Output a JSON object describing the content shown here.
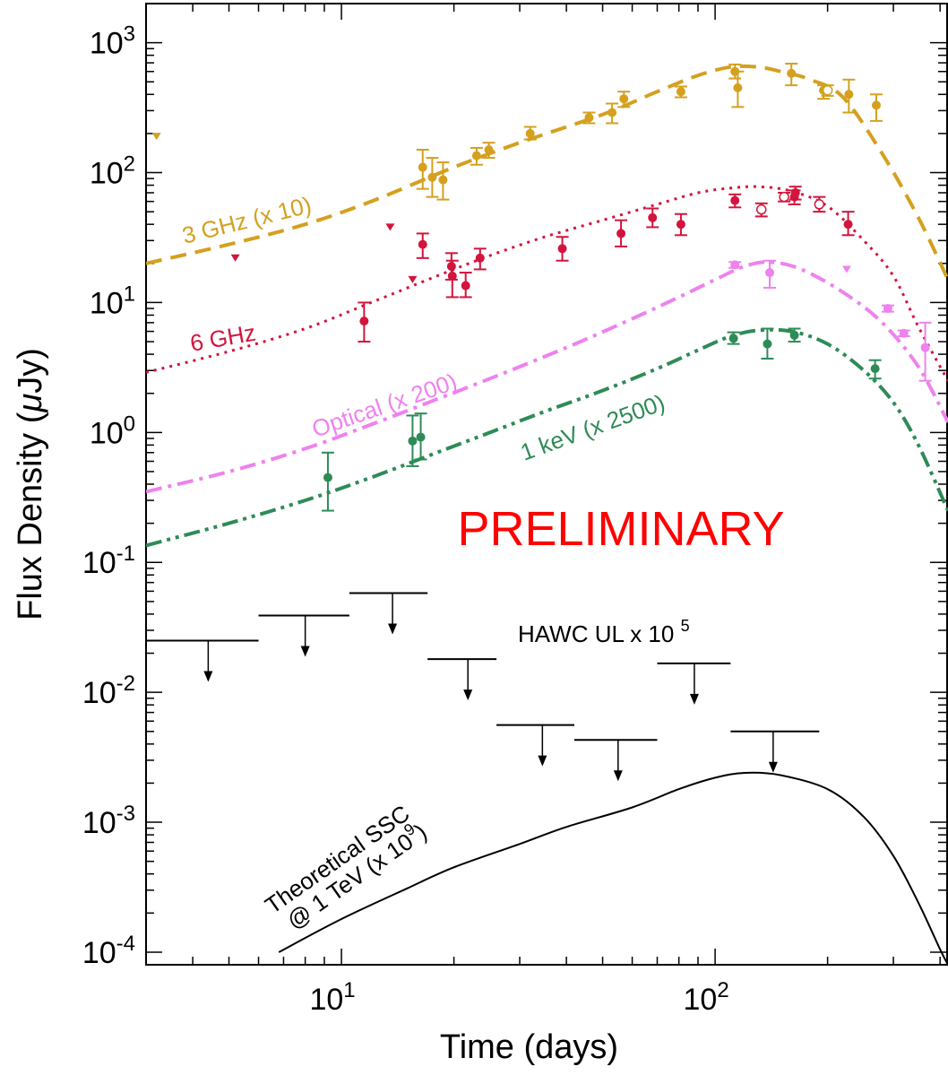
{
  "chart_data": {
    "type": "scatter",
    "xlabel_main": "Time (days)",
    "ylabel_parts": [
      "Flux Density (",
      "μ",
      "Jy)"
    ],
    "x_scale": "log",
    "y_scale": "log",
    "xlim": [
      3,
      420
    ],
    "ylim": [
      8e-05,
      2000
    ],
    "x_ticks": [
      {
        "base": "10",
        "exp": "1",
        "value": 10
      },
      {
        "base": "10",
        "exp": "2",
        "value": 100
      }
    ],
    "y_ticks": [
      {
        "base": "10",
        "exp": "3",
        "value": 1000
      },
      {
        "base": "10",
        "exp": "2",
        "value": 100
      },
      {
        "base": "10",
        "exp": "1",
        "value": 10
      },
      {
        "base": "10",
        "exp": "0",
        "value": 1
      },
      {
        "base": "10",
        "exp": "-1",
        "value": 0.1
      },
      {
        "base": "10",
        "exp": "-2",
        "value": 0.01
      },
      {
        "base": "10",
        "exp": "-3",
        "value": 0.001
      },
      {
        "base": "10",
        "exp": "-4",
        "value": 0.0001
      }
    ],
    "watermark": "PRELIMINARY",
    "colors": {
      "ghz3": "#d4a01e",
      "ghz6": "#d3143c",
      "optical": "#ee82ee",
      "xray": "#2e8b57",
      "hawc": "#000000",
      "ssc": "#000000",
      "watermark": "#ff0000"
    },
    "series": [
      {
        "id": "ghz3",
        "name": "3 GHz (x 10)",
        "points": [
          {
            "x": 16.5,
            "y": 110,
            "err": [
              75,
              150
            ]
          },
          {
            "x": 17.5,
            "y": 92,
            "err": [
              65,
              130
            ]
          },
          {
            "x": 18.7,
            "y": 88,
            "err": [
              62,
              120
            ]
          },
          {
            "x": 23,
            "y": 135,
            "err": [
              115,
              155
            ]
          },
          {
            "x": 24.8,
            "y": 150,
            "err": [
              130,
              170
            ]
          },
          {
            "x": 32,
            "y": 200,
            "err": [
              180,
              225
            ]
          },
          {
            "x": 46,
            "y": 265,
            "err": [
              240,
              290
            ]
          },
          {
            "x": 53,
            "y": 290,
            "err": [
              240,
              340
            ]
          },
          {
            "x": 57,
            "y": 370,
            "err": [
              320,
              420
            ]
          },
          {
            "x": 81,
            "y": 420,
            "err": [
              380,
              460
            ]
          },
          {
            "x": 113,
            "y": 600,
            "err": [
              530,
              680
            ]
          },
          {
            "x": 115,
            "y": 450,
            "err": [
              320,
              600
            ]
          },
          {
            "x": 160,
            "y": 580,
            "err": [
              470,
              690
            ]
          },
          {
            "x": 195,
            "y": 430,
            "err": [
              370,
              470
            ]
          },
          {
            "x": 228,
            "y": 400,
            "err": [
              290,
              520
            ]
          },
          {
            "x": 270,
            "y": 330,
            "err": [
              250,
              400
            ]
          }
        ],
        "open_points": [
          {
            "x": 200,
            "y": 430,
            "err": [
              390,
              470
            ]
          }
        ],
        "upper_limits": [
          {
            "x": 3.2,
            "y": 190
          }
        ],
        "model": [
          [
            3,
            20
          ],
          [
            5,
            28
          ],
          [
            8,
            40
          ],
          [
            12,
            60
          ],
          [
            20,
            110
          ],
          [
            30,
            170
          ],
          [
            50,
            280
          ],
          [
            70,
            420
          ],
          [
            90,
            560
          ],
          [
            110,
            650
          ],
          [
            130,
            650
          ],
          [
            150,
            600
          ],
          [
            180,
            520
          ],
          [
            220,
            380
          ],
          [
            280,
            140
          ],
          [
            350,
            45
          ],
          [
            420,
            15
          ]
        ]
      },
      {
        "id": "ghz6",
        "name": "6 GHz",
        "points": [
          {
            "x": 11.5,
            "y": 7.2,
            "err": [
              5,
              10
            ]
          },
          {
            "x": 16.5,
            "y": 28,
            "err": [
              22,
              34
            ]
          },
          {
            "x": 19.7,
            "y": 19,
            "err": [
              15,
              24
            ]
          },
          {
            "x": 19.8,
            "y": 16,
            "err": [
              11,
              21
            ]
          },
          {
            "x": 21.5,
            "y": 13.5,
            "err": [
              11,
              17
            ]
          },
          {
            "x": 23.5,
            "y": 22,
            "err": [
              18,
              26
            ]
          },
          {
            "x": 39,
            "y": 26,
            "err": [
              21,
              32
            ]
          },
          {
            "x": 56,
            "y": 34,
            "err": [
              27,
              43
            ]
          },
          {
            "x": 68,
            "y": 45,
            "err": [
              38,
              53
            ]
          },
          {
            "x": 81,
            "y": 40,
            "err": [
              33,
              48
            ]
          },
          {
            "x": 113,
            "y": 61,
            "err": [
              54,
              68
            ]
          },
          {
            "x": 163,
            "y": 65,
            "err": [
              57,
              73
            ]
          },
          {
            "x": 164,
            "y": 70,
            "err": [
              62,
              78
            ]
          },
          {
            "x": 227,
            "y": 40,
            "err": [
              33,
              50
            ]
          }
        ],
        "open_points": [
          {
            "x": 133,
            "y": 52,
            "err": [
              46,
              58
            ]
          },
          {
            "x": 153,
            "y": 65,
            "err": [
              60,
              70
            ]
          },
          {
            "x": 190,
            "y": 57,
            "err": [
              50,
              65
            ]
          }
        ],
        "upper_limits": [
          {
            "x": 5.2,
            "y": 22
          },
          {
            "x": 13.5,
            "y": 38
          },
          {
            "x": 15.5,
            "y": 15
          }
        ],
        "model": [
          [
            3,
            2.9
          ],
          [
            5,
            4.2
          ],
          [
            8,
            6.3
          ],
          [
            12,
            10
          ],
          [
            18,
            16
          ],
          [
            25,
            23
          ],
          [
            35,
            32
          ],
          [
            50,
            43
          ],
          [
            70,
            57
          ],
          [
            90,
            70
          ],
          [
            110,
            76
          ],
          [
            130,
            78
          ],
          [
            160,
            72
          ],
          [
            200,
            55
          ],
          [
            250,
            30
          ],
          [
            300,
            16
          ],
          [
            350,
            6.5
          ],
          [
            420,
            2.5
          ]
        ]
      },
      {
        "id": "optical",
        "name": "Optical (x 200)",
        "points": [
          {
            "x": 113,
            "y": 19.5,
            "err": [
              18.5,
              20.5
            ]
          },
          {
            "x": 140,
            "y": 17,
            "err": [
              13,
              21
            ]
          },
          {
            "x": 290,
            "y": 9,
            "err": [
              8.5,
              9.5
            ]
          },
          {
            "x": 320,
            "y": 5.8,
            "err": [
              5.5,
              6.1
            ]
          },
          {
            "x": 365,
            "y": 4.5,
            "err": [
              2.5,
              7
            ]
          }
        ],
        "open_points": [],
        "upper_limits": [
          {
            "x": 225,
            "y": 18
          }
        ],
        "model": [
          [
            3,
            0.35
          ],
          [
            5,
            0.5
          ],
          [
            8,
            0.75
          ],
          [
            12,
            1.15
          ],
          [
            18,
            1.8
          ],
          [
            25,
            2.6
          ],
          [
            40,
            4.5
          ],
          [
            60,
            7.5
          ],
          [
            80,
            11
          ],
          [
            100,
            15
          ],
          [
            120,
            19
          ],
          [
            140,
            20.5
          ],
          [
            170,
            18
          ],
          [
            220,
            12
          ],
          [
            280,
            7
          ],
          [
            350,
            3.2
          ],
          [
            420,
            1.2
          ]
        ]
      },
      {
        "id": "xray",
        "name": "1 keV (x 2500)",
        "points": [
          {
            "x": 9.2,
            "y": 0.45,
            "err": [
              0.25,
              0.7
            ]
          },
          {
            "x": 15.5,
            "y": 0.86,
            "err": [
              0.55,
              1.35
            ]
          },
          {
            "x": 16.3,
            "y": 0.92,
            "err": [
              0.62,
              1.4
            ]
          },
          {
            "x": 112,
            "y": 5.3,
            "err": [
              4.8,
              5.9
            ]
          },
          {
            "x": 138,
            "y": 4.8,
            "err": [
              3.7,
              6.3
            ]
          },
          {
            "x": 163,
            "y": 5.6,
            "err": [
              5.0,
              6.3
            ]
          },
          {
            "x": 268,
            "y": 3.1,
            "err": [
              2.6,
              3.6
            ]
          }
        ],
        "open_points": [],
        "upper_limits": [],
        "model": [
          [
            3,
            0.135
          ],
          [
            5,
            0.2
          ],
          [
            8,
            0.3
          ],
          [
            12,
            0.45
          ],
          [
            18,
            0.7
          ],
          [
            25,
            1.0
          ],
          [
            35,
            1.45
          ],
          [
            50,
            2.1
          ],
          [
            70,
            3.1
          ],
          [
            90,
            4.3
          ],
          [
            110,
            5.5
          ],
          [
            130,
            6.1
          ],
          [
            160,
            6.0
          ],
          [
            200,
            4.8
          ],
          [
            250,
            3.0
          ],
          [
            300,
            1.7
          ],
          [
            350,
            0.8
          ],
          [
            420,
            0.25
          ]
        ]
      },
      {
        "id": "hawc",
        "name": "HAWC UL x 10",
        "name_exp": "5",
        "bins": [
          {
            "x0": 3,
            "x1": 6,
            "y": 0.025,
            "xc": 4.4
          },
          {
            "x0": 6,
            "x1": 10.5,
            "y": 0.039,
            "xc": 8
          },
          {
            "x0": 10.5,
            "x1": 17,
            "y": 0.058,
            "xc": 13.7
          },
          {
            "x0": 17,
            "x1": 26,
            "y": 0.018,
            "xc": 21.8
          },
          {
            "x0": 26,
            "x1": 42,
            "y": 0.0056,
            "xc": 34.5
          },
          {
            "x0": 42,
            "x1": 70,
            "y": 0.0043,
            "xc": 55
          },
          {
            "x0": 70,
            "x1": 110,
            "y": 0.0167,
            "xc": 88
          },
          {
            "x0": 110,
            "x1": 190,
            "y": 0.005,
            "xc": 143
          }
        ]
      },
      {
        "id": "ssc",
        "name_line1": "Theoretical SSC",
        "name_line2": "@ 1 TeV (x 10",
        "name_exp": "9",
        "name_tail": ")",
        "model": [
          [
            6.8,
            0.0001
          ],
          [
            10,
            0.00018
          ],
          [
            15,
            0.00031
          ],
          [
            20,
            0.00045
          ],
          [
            30,
            0.00068
          ],
          [
            40,
            0.00092
          ],
          [
            60,
            0.0013
          ],
          [
            80,
            0.0018
          ],
          [
            100,
            0.0022
          ],
          [
            120,
            0.0024
          ],
          [
            150,
            0.0023
          ],
          [
            200,
            0.0018
          ],
          [
            250,
            0.0011
          ],
          [
            300,
            0.00055
          ],
          [
            350,
            0.00024
          ],
          [
            400,
            0.000105
          ],
          [
            420,
            8e-05
          ]
        ]
      }
    ]
  }
}
